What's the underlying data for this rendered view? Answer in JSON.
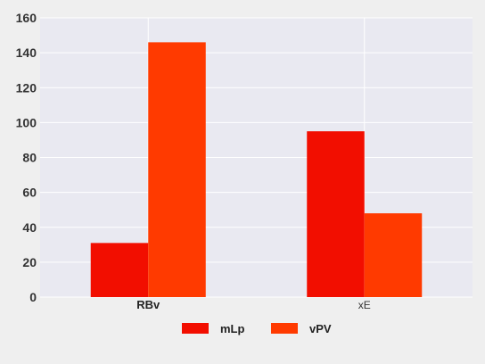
{
  "chart_data": {
    "type": "bar",
    "categories": [
      "RBv",
      "xE"
    ],
    "series": [
      {
        "name": "mLp",
        "values": [
          31,
          95
        ],
        "color": "#f20e00"
      },
      {
        "name": "vPV",
        "values": [
          146,
          48
        ],
        "color": "#ff3a00"
      }
    ],
    "yticks": [
      "0",
      "20",
      "40",
      "60",
      "80",
      "100",
      "120",
      "140",
      "160"
    ],
    "ylim": [
      0,
      160
    ],
    "grid": true,
    "legend_position": "bottom-center",
    "plot_background": "#e9e9f1",
    "page_background": "#efefef"
  }
}
